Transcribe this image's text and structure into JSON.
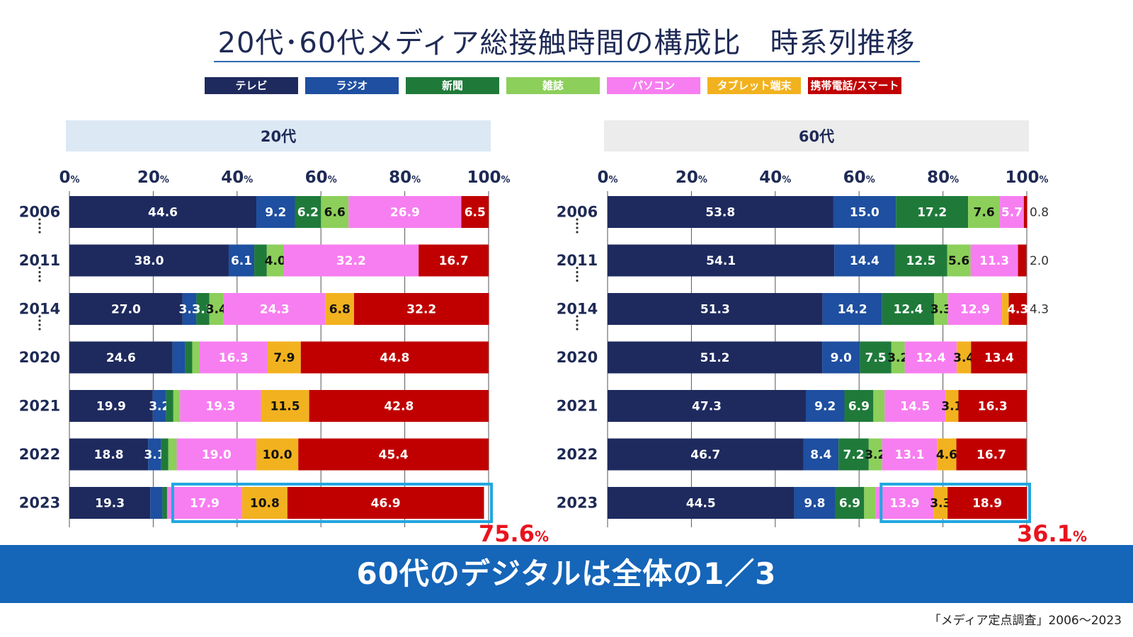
{
  "title": "20代･60代メディア総接触時間の構成比　時系列推移",
  "legend": [
    {
      "label": "テレビ",
      "color": "#1e2a5e"
    },
    {
      "label": "ラジオ",
      "color": "#1e4fa0"
    },
    {
      "label": "新聞",
      "color": "#1f7a3a"
    },
    {
      "label": "雑誌",
      "color": "#8ccf5a"
    },
    {
      "label": "パソコン",
      "color": "#f77ef0"
    },
    {
      "label": "タブレット端末",
      "color": "#f2b21f"
    },
    {
      "label": "携帯電話/スマートフォン",
      "color": "#c00000"
    }
  ],
  "banner": "60代のデジタルは全体の1／3",
  "source": "「メディア定点調査」2006～2023",
  "chart_data": [
    {
      "type": "bar",
      "stacked": true,
      "orientation": "horizontal",
      "title": "20代",
      "xlim": [
        0,
        100
      ],
      "x_ticks": [
        "0",
        "20",
        "40",
        "60",
        "80",
        "100"
      ],
      "x_unit": "%",
      "categories": [
        "2006",
        "2011",
        "2014",
        "2020",
        "2021",
        "2022",
        "2023"
      ],
      "series": [
        {
          "name": "テレビ",
          "values": [
            44.6,
            38.0,
            27.0,
            24.6,
            19.9,
            18.8,
            19.3
          ]
        },
        {
          "name": "ラジオ",
          "values": [
            9.2,
            6.1,
            3.3,
            3.0,
            3.2,
            3.1,
            2.9
          ]
        },
        {
          "name": "新聞",
          "values": [
            6.2,
            3.0,
            3.1,
            1.7,
            1.7,
            1.7,
            1.1
          ]
        },
        {
          "name": "雑誌",
          "values": [
            6.6,
            4.0,
            3.4,
            1.7,
            1.6,
            2.0,
            0
          ]
        },
        {
          "name": "パソコン",
          "values": [
            26.9,
            32.2,
            24.3,
            16.3,
            19.3,
            19.0,
            17.9
          ]
        },
        {
          "name": "タブレット端末",
          "values": [
            0,
            0,
            6.8,
            7.9,
            11.5,
            10.0,
            10.8
          ]
        },
        {
          "name": "携帯電話/スマートフォン",
          "values": [
            6.5,
            16.7,
            32.2,
            44.8,
            42.8,
            45.4,
            46.9
          ]
        }
      ],
      "highlight_total": "75.6",
      "highlight_unit": "%"
    },
    {
      "type": "bar",
      "stacked": true,
      "orientation": "horizontal",
      "title": "60代",
      "xlim": [
        0,
        100
      ],
      "x_ticks": [
        "0",
        "20",
        "40",
        "60",
        "80",
        "100"
      ],
      "x_unit": "%",
      "categories": [
        "2006",
        "2011",
        "2014",
        "2020",
        "2021",
        "2022",
        "2023"
      ],
      "series": [
        {
          "name": "テレビ",
          "values": [
            53.8,
            54.1,
            51.3,
            51.2,
            47.3,
            46.7,
            44.5
          ]
        },
        {
          "name": "ラジオ",
          "values": [
            15.0,
            14.4,
            14.2,
            9.0,
            9.2,
            8.4,
            9.8
          ]
        },
        {
          "name": "新聞",
          "values": [
            17.2,
            12.5,
            12.4,
            7.5,
            6.9,
            7.2,
            6.9
          ]
        },
        {
          "name": "雑誌",
          "values": [
            7.6,
            5.6,
            3.3,
            3.2,
            2.7,
            3.2,
            2.7
          ]
        },
        {
          "name": "パソコン",
          "values": [
            5.7,
            11.3,
            12.9,
            12.4,
            14.5,
            13.1,
            13.9
          ]
        },
        {
          "name": "タブレット端末",
          "values": [
            0,
            0,
            1.6,
            3.4,
            3.1,
            4.6,
            3.3
          ]
        },
        {
          "name": "携帯電話/スマートフォン",
          "values": [
            0.8,
            2.0,
            4.3,
            13.4,
            16.3,
            16.7,
            18.9
          ]
        }
      ],
      "highlight_total": "36.1",
      "highlight_unit": "%"
    }
  ]
}
